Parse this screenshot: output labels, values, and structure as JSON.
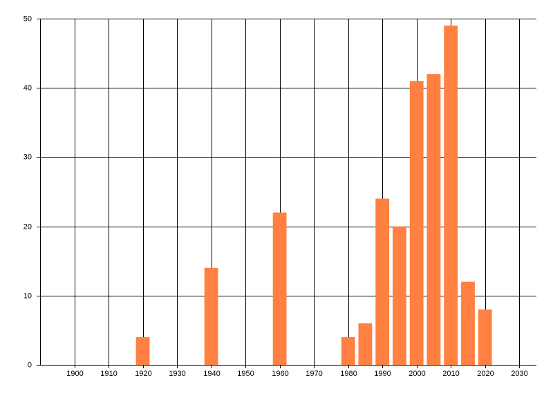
{
  "chart_data": {
    "type": "bar",
    "x": [
      1920,
      1940,
      1960,
      1980,
      1985,
      1990,
      1995,
      2000,
      2005,
      2010,
      2015,
      2020
    ],
    "values": [
      4,
      14,
      22,
      4,
      6,
      24,
      20,
      41,
      42,
      49,
      12,
      8
    ],
    "color": "#ff8040",
    "xlim": [
      1890,
      2035
    ],
    "xticks": [
      1900,
      1910,
      1920,
      1930,
      1940,
      1950,
      1960,
      1970,
      1980,
      1990,
      2000,
      2010,
      2020,
      2030
    ],
    "ylim": [
      0,
      50
    ],
    "yticks": [
      0,
      10,
      20,
      30,
      40,
      50
    ],
    "grid": true
  }
}
